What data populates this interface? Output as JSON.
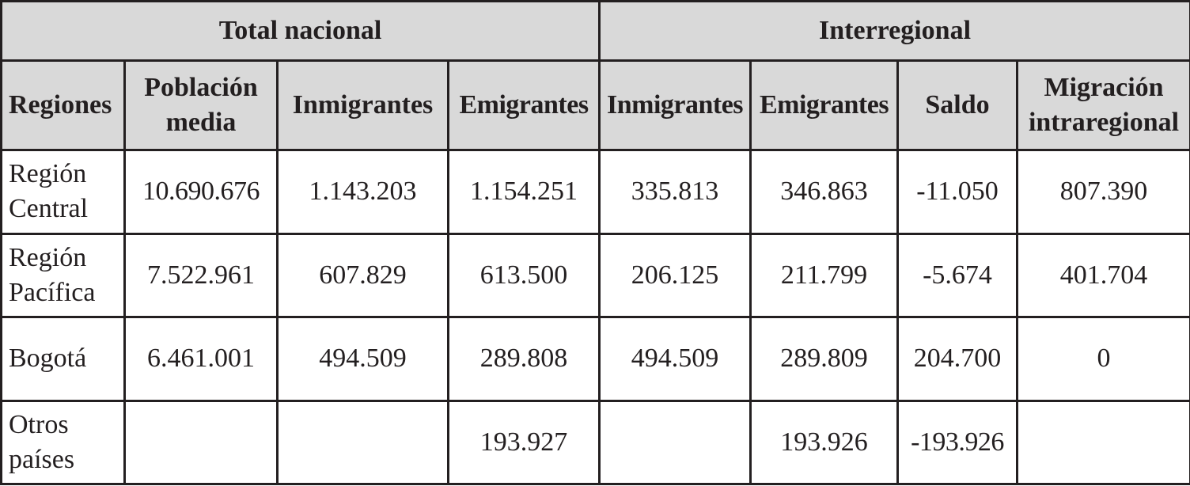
{
  "section_headers": {
    "total_nacional": "Total nacional",
    "interregional": "Interregional"
  },
  "columns": {
    "regiones": "Regiones",
    "poblacion_media": "Población media",
    "inmigrantes_total": "Inmigrantes",
    "emigrantes_total": "Emigrantes",
    "inmigrantes_inter": "Inmigrantes",
    "emigrantes_inter": "Emigrantes",
    "saldo": "Saldo",
    "migracion_intraregional": "Migración intraregional"
  },
  "rows": [
    {
      "region": "Región Central",
      "poblacion_media": "10.690.676",
      "inmigrantes_total": "1.143.203",
      "emigrantes_total": "1.154.251",
      "inmigrantes_inter": "335.813",
      "emigrantes_inter": "346.863",
      "saldo": "-11.050",
      "migracion_intraregional": "807.390"
    },
    {
      "region": "Región Pacífica",
      "poblacion_media": "7.522.961",
      "inmigrantes_total": "607.829",
      "emigrantes_total": "613.500",
      "inmigrantes_inter": "206.125",
      "emigrantes_inter": "211.799",
      "saldo": "-5.674",
      "migracion_intraregional": "401.704"
    },
    {
      "region": "Bogotá",
      "poblacion_media": "6.461.001",
      "inmigrantes_total": "494.509",
      "emigrantes_total": "289.808",
      "inmigrantes_inter": "494.509",
      "emigrantes_inter": "289.809",
      "saldo": "204.700",
      "migracion_intraregional": "0"
    },
    {
      "region": "Otros países",
      "poblacion_media": "",
      "inmigrantes_total": "",
      "emigrantes_total": "193.927",
      "inmigrantes_inter": "",
      "emigrantes_inter": "193.926",
      "saldo": "-193.926",
      "migracion_intraregional": ""
    }
  ]
}
